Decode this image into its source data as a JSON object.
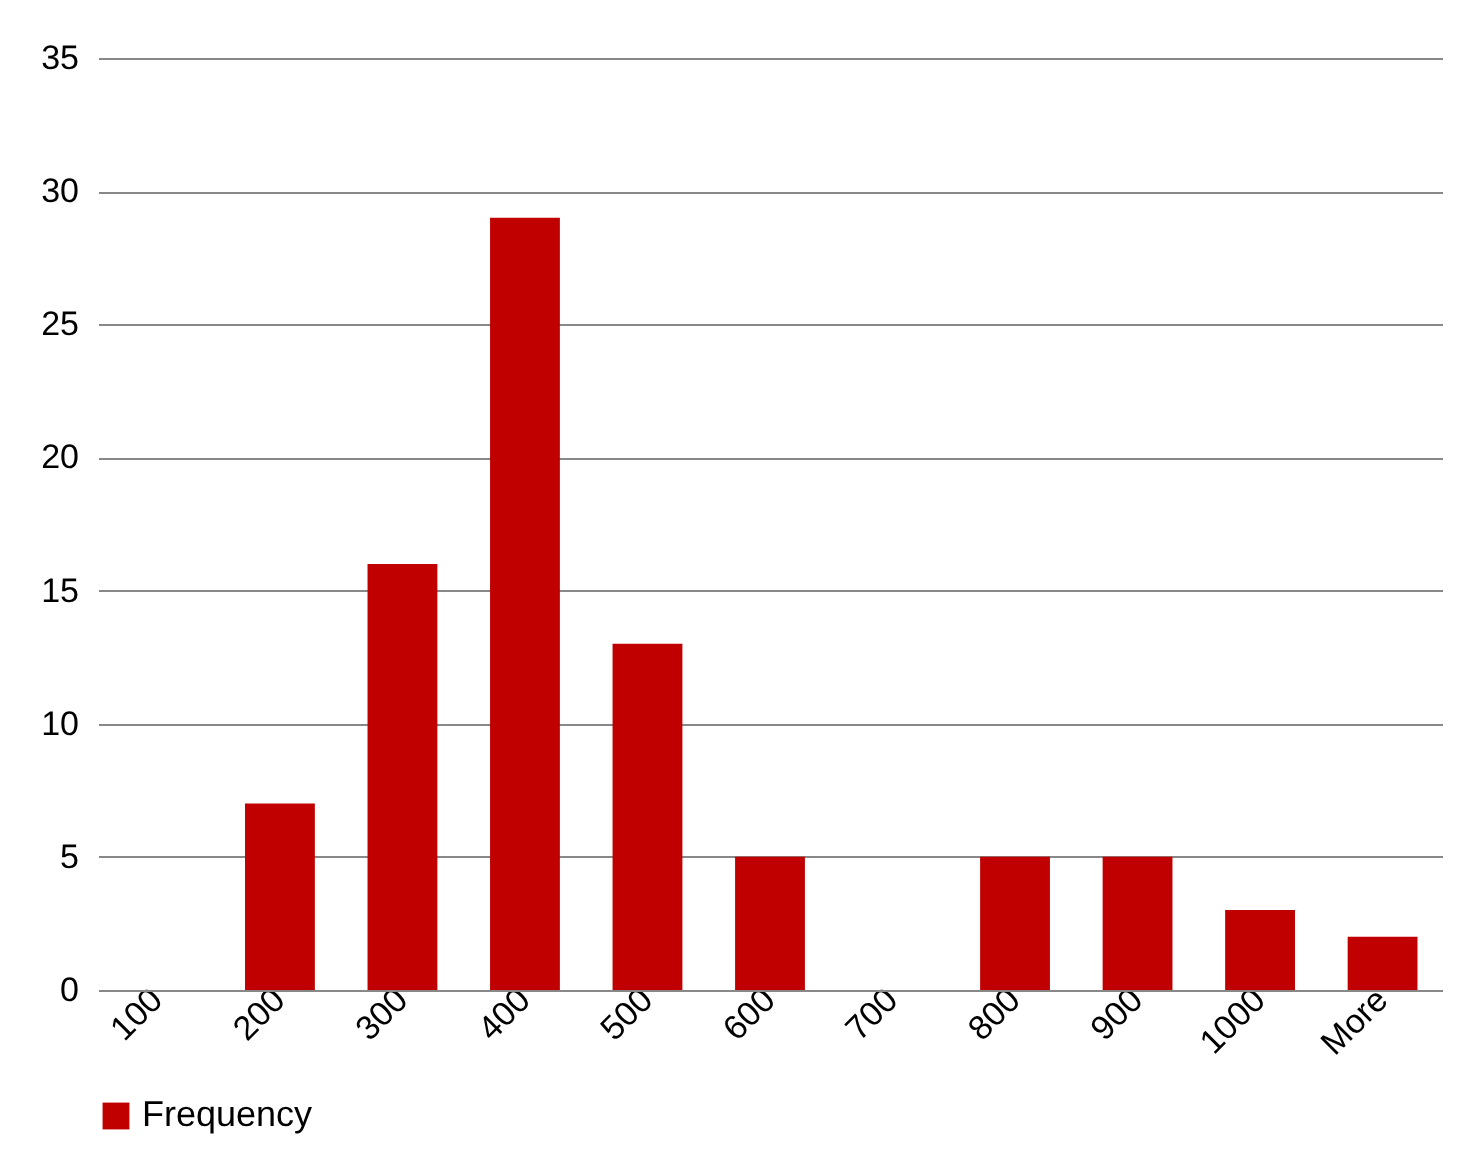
{
  "chart_data": {
    "type": "bar",
    "categories": [
      "100",
      "200",
      "300",
      "400",
      "500",
      "600",
      "700",
      "800",
      "900",
      "1000",
      "More"
    ],
    "series": [
      {
        "name": "Frequency",
        "color": "#c00000",
        "values": [
          0,
          7,
          16,
          29,
          13,
          5,
          0,
          5,
          5,
          3,
          2
        ]
      }
    ],
    "ylim": [
      0,
      35
    ],
    "yticks": [
      0,
      5,
      10,
      15,
      20,
      25,
      30,
      35
    ],
    "grid": "y",
    "legend": "bottom"
  }
}
